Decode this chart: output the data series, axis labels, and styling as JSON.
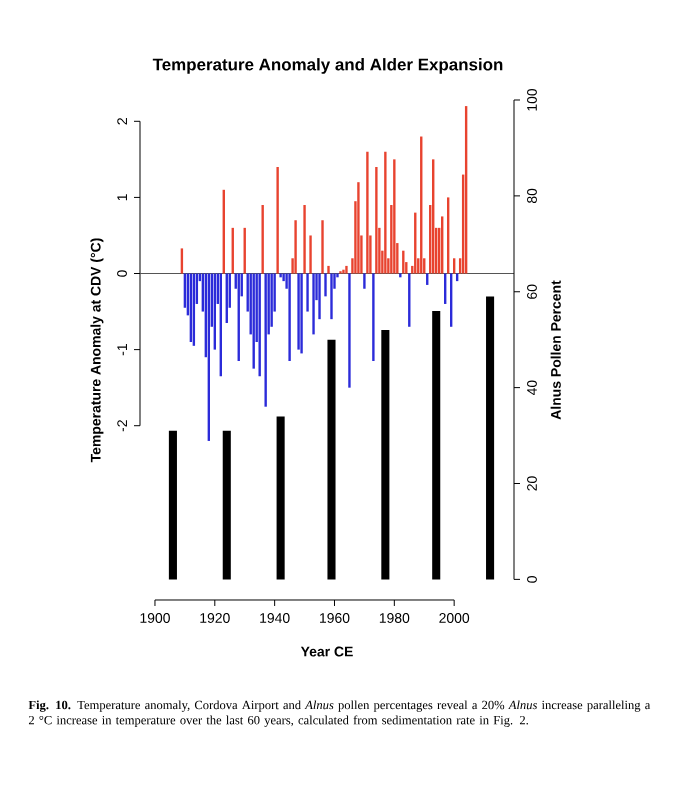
{
  "chart_data": {
    "type": "bar",
    "title": "Temperature Anomaly and Alder Expansion",
    "xlabel": "Year CE",
    "ylabel": "Temperature Anomaly at CDV (°C)",
    "y2label": "Alnus Pollen Percent",
    "xlim": [
      1895,
      2020
    ],
    "xticks": [
      1900,
      1920,
      1940,
      1960,
      1980,
      2000
    ],
    "ylim": [
      -4.29,
      2.28
    ],
    "yticks": [
      -2,
      -1,
      0,
      1,
      2
    ],
    "y2lim": [
      -4.3,
      100
    ],
    "y2ticks": [
      0,
      20,
      40,
      60,
      80,
      100
    ],
    "ref_lines": [
      {
        "axis": "y",
        "value": 0,
        "color": "#555555"
      }
    ],
    "series": [
      {
        "x": [
          1909,
          1910,
          1911,
          1912,
          1913,
          1914,
          1915,
          1916,
          1917,
          1918,
          1919,
          1920,
          1921,
          1922,
          1923,
          1924,
          1925,
          1926,
          1927,
          1928,
          1929,
          1930,
          1931,
          1932,
          1933,
          1934,
          1935,
          1936,
          1937,
          1938,
          1939,
          1940,
          1941,
          1942,
          1943,
          1944,
          1945,
          1946,
          1947,
          1948,
          1949,
          1950,
          1951,
          1952,
          1953,
          1954,
          1955,
          1956,
          1957,
          1958,
          1959,
          1960,
          1961,
          1962,
          1963,
          1964,
          1965,
          1966,
          1967,
          1968,
          1969,
          1970,
          1971,
          1972,
          1973,
          1974,
          1975,
          1976,
          1977,
          1978,
          1979,
          1980,
          1981,
          1982,
          1983,
          1984,
          1985,
          1986,
          1987,
          1988,
          1989,
          1990,
          1991,
          1992,
          1993,
          1994,
          1995,
          1996,
          1997,
          1998,
          1999,
          2000,
          2001,
          2002,
          2003,
          2004
        ],
        "values": [
          0.33,
          -0.45,
          -0.55,
          -0.9,
          -0.95,
          -0.4,
          -0.1,
          -0.5,
          -1.1,
          -2.2,
          -0.7,
          -1.0,
          -0.4,
          -1.35,
          1.1,
          -0.65,
          -0.45,
          0.6,
          -0.2,
          -1.15,
          -0.3,
          0.6,
          -0.5,
          -0.8,
          -1.25,
          -0.9,
          -1.35,
          0.9,
          -1.75,
          -0.8,
          -0.7,
          -0.5,
          1.4,
          -0.05,
          -0.1,
          -0.2,
          -1.15,
          0.2,
          0.7,
          -1.0,
          -1.05,
          0.9,
          -0.5,
          0.5,
          -0.8,
          -0.35,
          -0.6,
          0.7,
          -0.3,
          0.1,
          -0.6,
          -0.2,
          -0.05,
          0.03,
          0.05,
          0.1,
          -1.5,
          0.2,
          0.95,
          1.2,
          0.5,
          -0.2,
          1.6,
          0.5,
          -1.15,
          1.4,
          0.6,
          0.3,
          1.6,
          0.2,
          0.9,
          1.5,
          0.4,
          -0.05,
          0.3,
          0.15,
          -0.7,
          0.1,
          0.8,
          0.2,
          1.8,
          0.2,
          -0.15,
          0.9,
          1.5,
          0.6,
          0.6,
          0.75,
          -0.4,
          1.0,
          -0.7,
          0.2,
          -0.1,
          0.2,
          1.3,
          2.2
        ],
        "colors": [
          "#e8432f",
          "#2b2bd9",
          "#2b2bd9",
          "#2b2bd9",
          "#2b2bd9",
          "#2b2bd9",
          "#2b2bd9",
          "#2b2bd9",
          "#2b2bd9",
          "#2b2bd9",
          "#2b2bd9",
          "#2b2bd9",
          "#2b2bd9",
          "#2b2bd9",
          "#e8432f",
          "#2b2bd9",
          "#2b2bd9",
          "#e8432f",
          "#2b2bd9",
          "#2b2bd9",
          "#2b2bd9",
          "#e8432f",
          "#2b2bd9",
          "#2b2bd9",
          "#2b2bd9",
          "#2b2bd9",
          "#2b2bd9",
          "#e8432f",
          "#2b2bd9",
          "#2b2bd9",
          "#2b2bd9",
          "#2b2bd9",
          "#e8432f",
          "#2b2bd9",
          "#2b2bd9",
          "#2b2bd9",
          "#2b2bd9",
          "#e8432f",
          "#e8432f",
          "#2b2bd9",
          "#2b2bd9",
          "#e8432f",
          "#2b2bd9",
          "#e8432f",
          "#2b2bd9",
          "#2b2bd9",
          "#2b2bd9",
          "#e8432f",
          "#2b2bd9",
          "#e8432f",
          "#2b2bd9",
          "#2b2bd9",
          "#2b2bd9",
          "#e8432f",
          "#e8432f",
          "#e8432f",
          "#2b2bd9",
          "#e8432f",
          "#e8432f",
          "#e8432f",
          "#e8432f",
          "#2b2bd9",
          "#e8432f",
          "#e8432f",
          "#2b2bd9",
          "#e8432f",
          "#e8432f",
          "#e8432f",
          "#e8432f",
          "#e8432f",
          "#e8432f",
          "#e8432f",
          "#e8432f",
          "#2b2bd9",
          "#e8432f",
          "#e8432f",
          "#2b2bd9",
          "#e8432f",
          "#e8432f",
          "#e8432f",
          "#e8432f",
          "#e8432f",
          "#2b2bd9",
          "#e8432f",
          "#e8432f",
          "#e8432f",
          "#e8432f",
          "#e8432f",
          "#2b2bd9",
          "#e8432f",
          "#2b2bd9",
          "#e8432f",
          "#2b2bd9",
          "#e8432f",
          "#e8432f",
          "#e8432f"
        ]
      },
      {
        "axis": "y2",
        "color": "#000000",
        "x": [
          1906,
          1924,
          1942,
          1959,
          1977,
          1994,
          2012
        ],
        "values": [
          31,
          31,
          34,
          50,
          52,
          56,
          59
        ]
      }
    ],
    "annotations": [
      "**Fig. 10.** Temperature anomaly, Cordova Airport and *Alnus* pollen percentages reveal a 20% *Alnus* increase paralleling a 2 °C increase in temperature over the last 60 years, calculated from sedimentation rate in Fig. 2."
    ]
  }
}
